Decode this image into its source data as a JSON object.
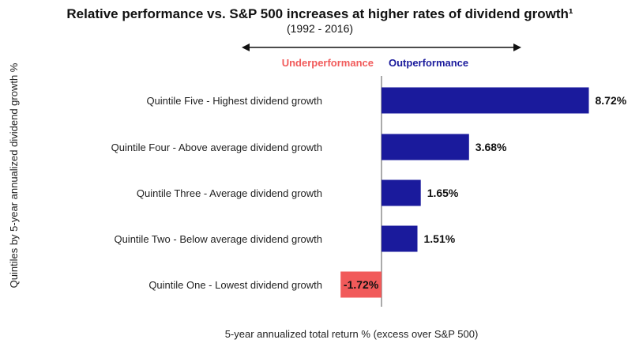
{
  "chart_data": {
    "type": "bar",
    "orientation": "horizontal",
    "title": "Relative performance vs. S&P 500 increases at higher rates of dividend growth¹",
    "subtitle": "(1992 - 2016)",
    "xlabel": "5-year annualized total return % (excess over S&P 500)",
    "ylabel": "Quintiles by 5-year annualized dividend growth %",
    "negative_side_label": "Underperformance",
    "positive_side_label": "Outperformance",
    "categories": [
      "Quintile Five - Highest dividend growth",
      "Quintile Four - Above average dividend growth",
      "Quintile Three - Average dividend growth",
      "Quintile Two - Below average dividend growth",
      "Quintile One - Lowest dividend growth"
    ],
    "values": [
      8.72,
      3.68,
      1.65,
      1.51,
      -1.72
    ],
    "value_labels": [
      "8.72%",
      "3.68%",
      "1.65%",
      "1.51%",
      "-1.72%"
    ],
    "xlim": [
      -2,
      9
    ],
    "grid": false,
    "legend": "none",
    "colors": {
      "positive": "#1a1a9c",
      "negative": "#f15a5a",
      "negative_label_text": "#ffffff",
      "positive_side_label": "#1a1a9c",
      "negative_side_label": "#f15a5a",
      "zero_line": "#555555",
      "arrow": "#111111"
    }
  }
}
